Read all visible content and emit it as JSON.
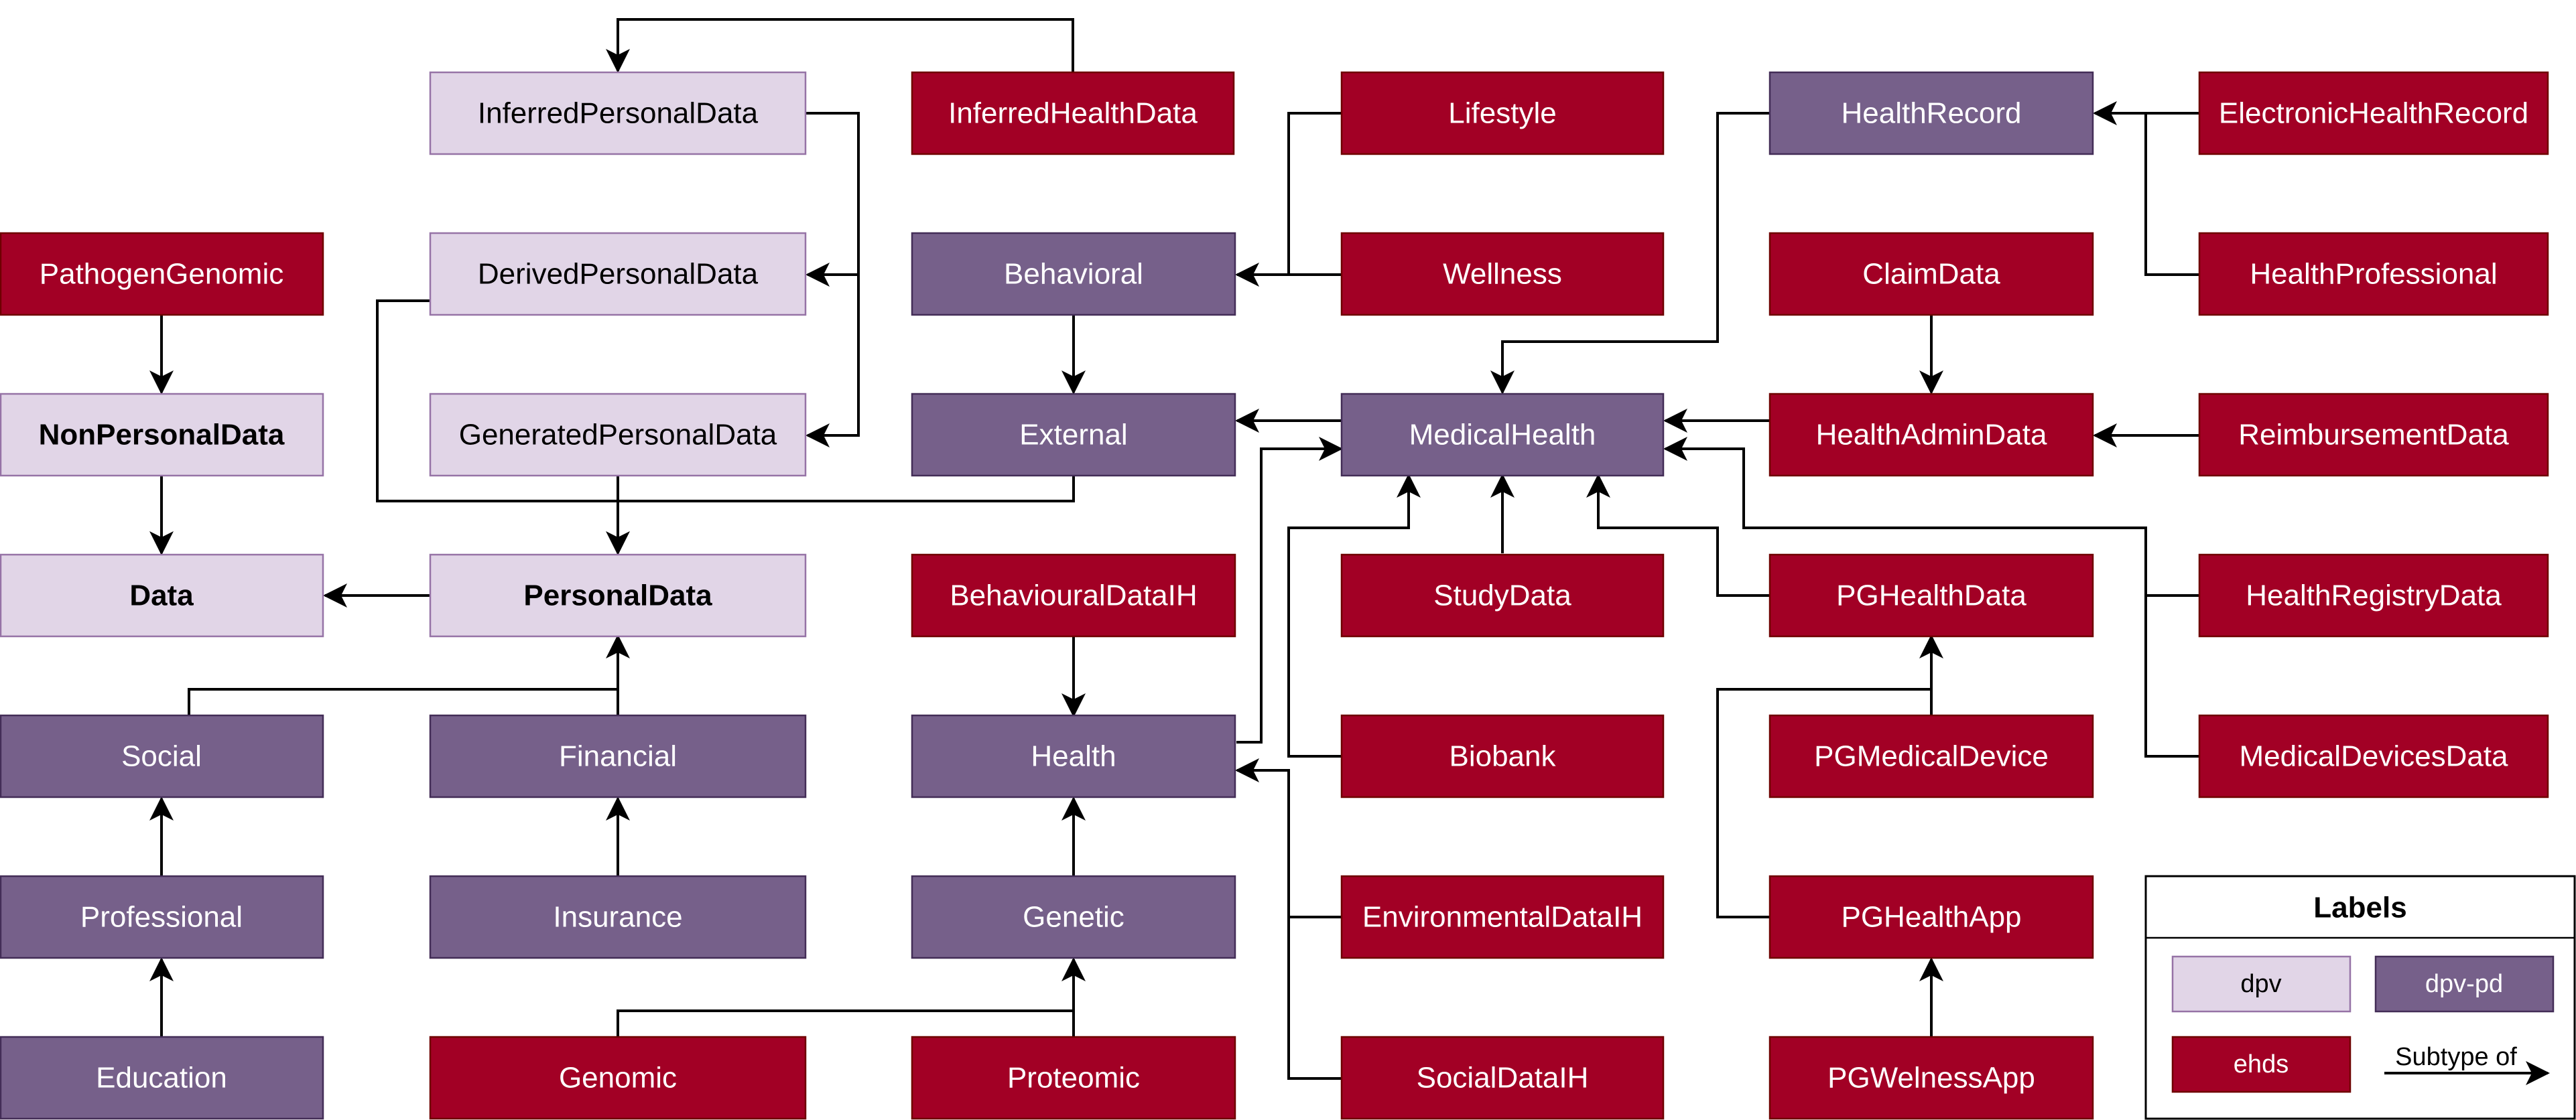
{
  "palette": {
    "dpv_fill": "#e1d5e7",
    "dpv_stroke": "#9673a6",
    "dpvpd_fill": "#76608a",
    "dpvpd_stroke": "#432d57",
    "ehds_fill": "#a20025",
    "ehds_stroke": "#6f0000"
  },
  "nodes": {
    "inferred_personal_data": "InferredPersonalData",
    "inferred_health_data": "InferredHealthData",
    "lifestyle": "Lifestyle",
    "health_record": "HealthRecord",
    "electronic_health_record": "ElectronicHealthRecord",
    "pathogen_genomic": "PathogenGenomic",
    "derived_personal_data": "DerivedPersonalData",
    "behavioral": "Behavioral",
    "wellness": "Wellness",
    "claim_data": "ClaimData",
    "health_professional": "HealthProfessional",
    "non_personal_data": "NonPersonalData",
    "generated_personal_data": "GeneratedPersonalData",
    "external": "External",
    "medical_health": "MedicalHealth",
    "health_admin_data": "HealthAdminData",
    "reimbursement_data": "ReimbursementData",
    "data": "Data",
    "personal_data": "PersonalData",
    "behavioural_data_ih": "BehaviouralDataIH",
    "study_data": "StudyData",
    "pg_health_data": "PGHealthData",
    "health_registry_data": "HealthRegistryData",
    "social": "Social",
    "financial": "Financial",
    "health": "Health",
    "biobank": "Biobank",
    "pg_medical_device": "PGMedicalDevice",
    "medical_devices_data": "MedicalDevicesData",
    "professional": "Professional",
    "insurance": "Insurance",
    "genetic": "Genetic",
    "environmental_data_ih": "EnvironmentalDataIH",
    "pg_health_app": "PGHealthApp",
    "education": "Education",
    "genomic": "Genomic",
    "proteomic": "Proteomic",
    "social_data_ih": "SocialDataIH",
    "pg_welness_app": "PGWelnessApp"
  },
  "legend": {
    "title": "Labels",
    "dpv": "dpv",
    "dpv_pd": "dpv-pd",
    "ehds": "ehds",
    "subtype_of": "Subtype of"
  }
}
